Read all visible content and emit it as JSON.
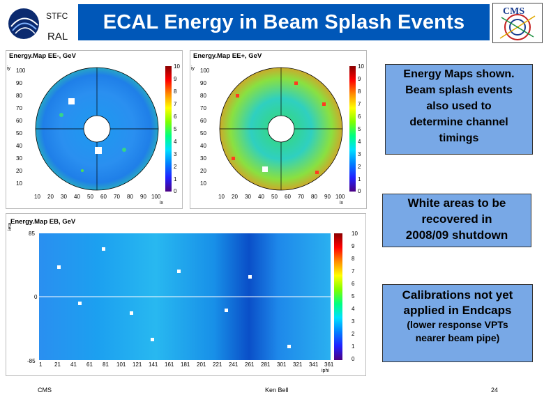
{
  "header": {
    "title": "ECAL Energy in Beam Splash Events",
    "logo_left_line1": "STFC",
    "logo_left_line2": "RAL",
    "logo_right": "CMS"
  },
  "plots": {
    "ee_minus": {
      "title": "Energy.Map EE-, GeV",
      "ylabel": "iy",
      "xlabel": "ix",
      "yticks": [
        "100",
        "90",
        "80",
        "70",
        "60",
        "50",
        "40",
        "30",
        "20",
        "10"
      ],
      "xticks": [
        "10",
        "20",
        "30",
        "40",
        "50",
        "60",
        "70",
        "80",
        "90",
        "100"
      ],
      "zticks": [
        "10",
        "9",
        "8",
        "7",
        "6",
        "5",
        "4",
        "3",
        "2",
        "1",
        "0"
      ]
    },
    "ee_plus": {
      "title": "Energy.Map EE+, GeV",
      "ylabel": "iy",
      "xlabel": "ix",
      "yticks": [
        "100",
        "90",
        "80",
        "70",
        "60",
        "50",
        "40",
        "30",
        "20",
        "10"
      ],
      "xticks": [
        "10",
        "20",
        "30",
        "40",
        "50",
        "60",
        "70",
        "80",
        "90",
        "100"
      ],
      "zticks": [
        "10",
        "9",
        "8",
        "7",
        "6",
        "5",
        "4",
        "3",
        "2",
        "1",
        "0"
      ]
    },
    "eb": {
      "title": "Energy.Map EB, GeV",
      "ylabel": "ieta",
      "xlabel": "iphi",
      "yticks": [
        "85",
        "0",
        "-85"
      ],
      "xticks": [
        "1",
        "21",
        "41",
        "61",
        "81",
        "101",
        "121",
        "141",
        "161",
        "181",
        "201",
        "221",
        "241",
        "261",
        "281",
        "301",
        "321",
        "341",
        "361"
      ],
      "zticks": [
        "10",
        "9",
        "8",
        "7",
        "6",
        "5",
        "4",
        "3",
        "2",
        "1",
        "0"
      ]
    }
  },
  "callouts": {
    "c1": [
      "Energy Maps shown.",
      "Beam splash events",
      "also used to",
      "determine channel",
      "timings"
    ],
    "c2": [
      "White areas to be",
      "recovered in",
      "2008/09 shutdown"
    ],
    "c3_main": [
      "Calibrations not yet",
      "applied in Endcaps"
    ],
    "c3_sub": [
      "(lower response VPTs",
      "nearer beam pipe)"
    ]
  },
  "footer": {
    "left": "CMS",
    "center": "Ken Bell",
    "right": "24"
  }
}
